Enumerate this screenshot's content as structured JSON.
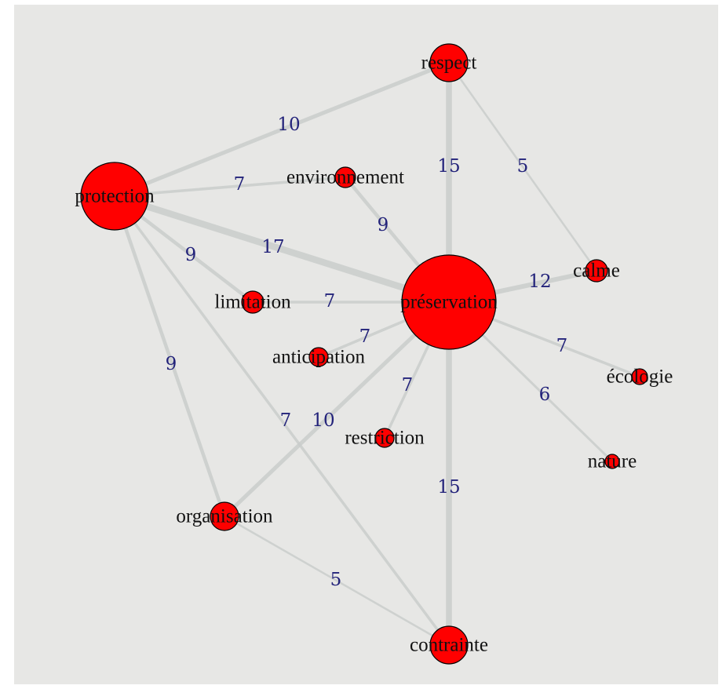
{
  "nodes": [
    {
      "label": "respect"
    },
    {
      "label": "protection"
    },
    {
      "label": "environnement"
    },
    {
      "label": "préservation"
    },
    {
      "label": "calme"
    },
    {
      "label": "limitation"
    },
    {
      "label": "anticipation"
    },
    {
      "label": "écologie"
    },
    {
      "label": "restriction"
    },
    {
      "label": "nature"
    },
    {
      "label": "organisation"
    },
    {
      "label": "contrainte"
    }
  ],
  "edges": [
    {
      "source": 1,
      "target": 0,
      "value": 10
    },
    {
      "source": 0,
      "target": 3,
      "value": 15
    },
    {
      "source": 0,
      "target": 4,
      "value": 5
    },
    {
      "source": 1,
      "target": 2,
      "value": 7
    },
    {
      "source": 2,
      "target": 3,
      "value": 9
    },
    {
      "source": 1,
      "target": 3,
      "value": 17
    },
    {
      "source": 1,
      "target": 5,
      "value": 9
    },
    {
      "source": 5,
      "target": 3,
      "value": 7
    },
    {
      "source": 3,
      "target": 6,
      "value": 7
    },
    {
      "source": 3,
      "target": 4,
      "value": 12
    },
    {
      "source": 3,
      "target": 7,
      "value": 7
    },
    {
      "source": 3,
      "target": 9,
      "value": 6
    },
    {
      "source": 3,
      "target": 8,
      "value": 7
    },
    {
      "source": 3,
      "target": 11,
      "value": 15
    },
    {
      "source": 1,
      "target": 10,
      "value": 9
    },
    {
      "source": 3,
      "target": 10,
      "value": 10
    },
    {
      "source": 1,
      "target": 11,
      "value": 7
    },
    {
      "source": 10,
      "target": 11,
      "value": 5
    }
  ]
}
